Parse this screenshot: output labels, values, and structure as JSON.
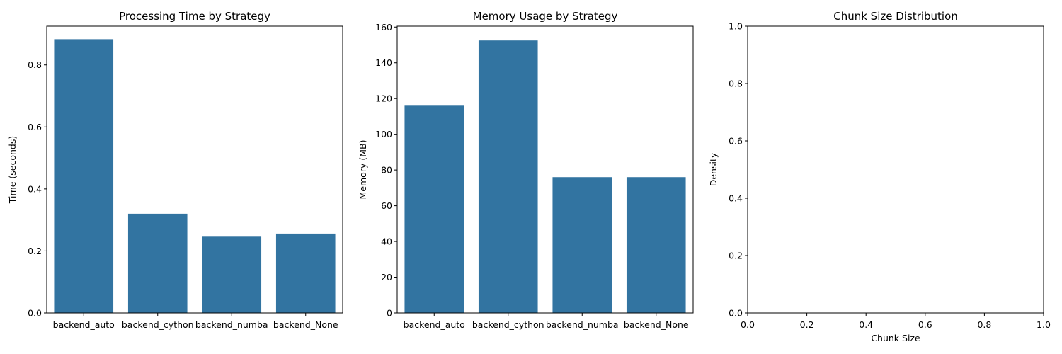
{
  "chart_data": [
    {
      "type": "bar",
      "title": "Processing Time by Strategy",
      "xlabel": "",
      "ylabel": "Time (seconds)",
      "categories": [
        "backend_auto",
        "backend_cython",
        "backend_numba",
        "backend_None"
      ],
      "values": [
        0.883,
        0.32,
        0.246,
        0.256
      ],
      "ylim": [
        0,
        0.925
      ],
      "yticks": [
        0.0,
        0.2,
        0.4,
        0.6,
        0.8
      ],
      "ytick_labels": [
        "0.0",
        "0.2",
        "0.4",
        "0.6",
        "0.8"
      ],
      "bar_color": "#3274a1",
      "grid": false,
      "legend": "none"
    },
    {
      "type": "bar",
      "title": "Memory Usage by Strategy",
      "xlabel": "",
      "ylabel": "Memory (MB)",
      "categories": [
        "backend_auto",
        "backend_cython",
        "backend_numba",
        "backend_None"
      ],
      "values": [
        116,
        152.5,
        76,
        76
      ],
      "ylim": [
        0,
        160.5
      ],
      "yticks": [
        0,
        20,
        40,
        60,
        80,
        100,
        120,
        140,
        160
      ],
      "ytick_labels": [
        "0",
        "20",
        "40",
        "60",
        "80",
        "100",
        "120",
        "140",
        "160"
      ],
      "bar_color": "#3274a1",
      "grid": false,
      "legend": "none"
    },
    {
      "type": "scatter",
      "title": "Chunk Size Distribution",
      "xlabel": "Chunk Size",
      "ylabel": "Density",
      "categories": [],
      "values": [],
      "xlim": [
        0,
        1
      ],
      "ylim": [
        0,
        1
      ],
      "xticks": [
        0.0,
        0.2,
        0.4,
        0.6,
        0.8,
        1.0
      ],
      "xtick_labels": [
        "0.0",
        "0.2",
        "0.4",
        "0.6",
        "0.8",
        "1.0"
      ],
      "yticks": [
        0.0,
        0.2,
        0.4,
        0.6,
        0.8,
        1.0
      ],
      "ytick_labels": [
        "0.0",
        "0.2",
        "0.4",
        "0.6",
        "0.8",
        "1.0"
      ],
      "grid": false,
      "legend": "none"
    }
  ]
}
